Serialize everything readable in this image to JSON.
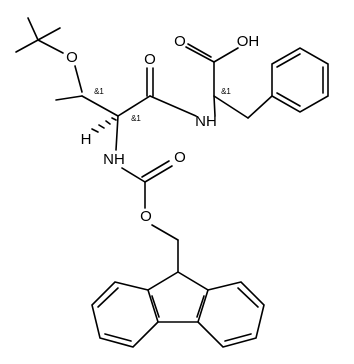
{
  "atoms": [
    "O",
    "O",
    "O",
    "OH",
    "NH",
    "H",
    "NH",
    "O",
    "O"
  ],
  "stereo_labels": [
    "&1",
    "&1",
    "&1"
  ]
}
